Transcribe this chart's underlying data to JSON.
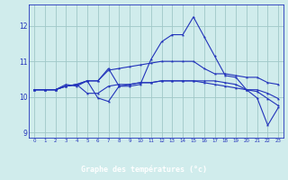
{
  "xlabel": "Graphe des températures (°c)",
  "background_color": "#d0ecec",
  "line_color": "#2233bb",
  "grid_color": "#a0c8c8",
  "hours": [
    0,
    1,
    2,
    3,
    4,
    5,
    6,
    7,
    8,
    9,
    10,
    11,
    12,
    13,
    14,
    15,
    16,
    17,
    18,
    19,
    20,
    21,
    22,
    23
  ],
  "series1": [
    10.2,
    10.2,
    10.2,
    10.35,
    10.3,
    10.45,
    9.97,
    9.87,
    10.3,
    10.3,
    10.35,
    11.05,
    11.55,
    11.75,
    11.75,
    12.25,
    11.7,
    11.15,
    10.6,
    10.55,
    10.2,
    9.97,
    9.2,
    9.7
  ],
  "series2": [
    10.2,
    10.2,
    10.2,
    10.3,
    10.35,
    10.45,
    10.45,
    10.75,
    10.8,
    10.85,
    10.9,
    10.95,
    11.0,
    11.0,
    11.0,
    11.0,
    10.8,
    10.65,
    10.65,
    10.6,
    10.55,
    10.55,
    10.4,
    10.35
  ],
  "series3": [
    10.2,
    10.2,
    10.2,
    10.3,
    10.35,
    10.1,
    10.1,
    10.3,
    10.35,
    10.35,
    10.4,
    10.4,
    10.45,
    10.45,
    10.45,
    10.45,
    10.4,
    10.35,
    10.3,
    10.25,
    10.2,
    10.15,
    9.95,
    9.75
  ],
  "series4": [
    10.2,
    10.2,
    10.2,
    10.3,
    10.35,
    10.45,
    10.45,
    10.8,
    10.3,
    10.35,
    10.4,
    10.4,
    10.45,
    10.45,
    10.45,
    10.45,
    10.45,
    10.45,
    10.4,
    10.35,
    10.2,
    10.2,
    10.1,
    9.95
  ],
  "ylim": [
    8.85,
    12.6
  ],
  "yticks": [
    9,
    10,
    11,
    12
  ],
  "xlim": [
    -0.5,
    23.5
  ],
  "xlabel_color": "#2233bb",
  "xlabel_bg": "#2233bb",
  "xlabel_fg": "#ffffff"
}
